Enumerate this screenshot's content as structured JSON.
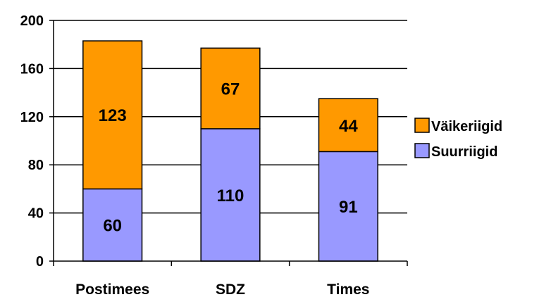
{
  "chart_data": {
    "type": "bar",
    "stacked": true,
    "categories": [
      "Postimees",
      "SDZ",
      "Times"
    ],
    "series": [
      {
        "name": "Suurriigid",
        "values": [
          60,
          110,
          91
        ],
        "color": "#9999ff"
      },
      {
        "name": "Väikeriigid",
        "values": [
          123,
          67,
          44
        ],
        "color": "#ff9900"
      }
    ],
    "ylim": [
      0,
      200
    ],
    "yticks": [
      0,
      40,
      80,
      120,
      160,
      200
    ],
    "grid": true,
    "legend_position": "right",
    "legend_order": [
      "Väikeriigid",
      "Suurriigid"
    ],
    "xlabel": "",
    "ylabel": "",
    "title": ""
  }
}
